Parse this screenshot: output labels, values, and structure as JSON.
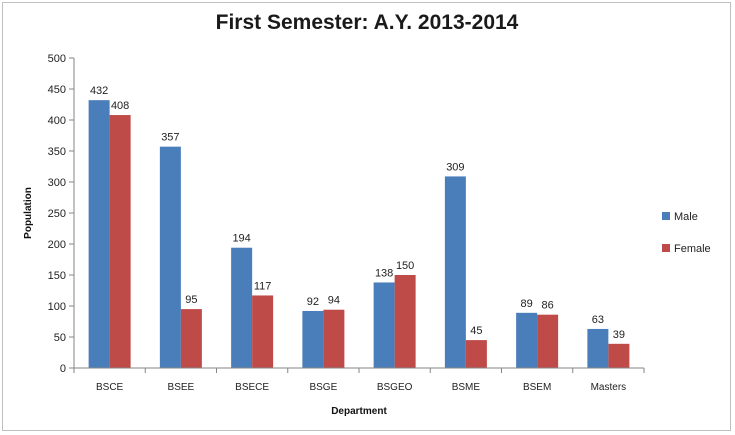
{
  "chart_data": {
    "type": "bar",
    "title": "First Semester: A.Y. 2013-2014",
    "xlabel": "Department",
    "ylabel": "Population",
    "ylim": [
      0,
      500
    ],
    "yticks": [
      0,
      50,
      100,
      150,
      200,
      250,
      300,
      350,
      400,
      450,
      500
    ],
    "categories": [
      "BSCE",
      "BSEE",
      "BSECE",
      "BSGE",
      "BSGEO",
      "BSME",
      "BSEM",
      "Masters"
    ],
    "series": [
      {
        "name": "Male",
        "color": "#4a7ebb",
        "values": [
          432,
          357,
          194,
          92,
          138,
          309,
          89,
          63
        ]
      },
      {
        "name": "Female",
        "color": "#be4b48",
        "values": [
          408,
          95,
          117,
          94,
          150,
          45,
          86,
          39
        ]
      }
    ],
    "legend_position": "right",
    "grid": false,
    "data_labels": true
  }
}
